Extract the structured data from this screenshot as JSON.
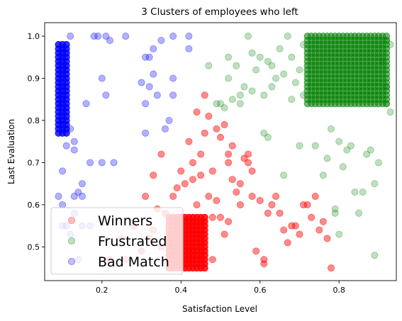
{
  "chart_data": {
    "type": "scatter",
    "title": "3 Clusters of employees who left",
    "xlabel": "Satisfaction Level",
    "ylabel": "Last Evaluation",
    "xlim": [
      0.055,
      0.945
    ],
    "ylim": [
      0.42,
      1.032
    ],
    "x_ticks": [
      0.2,
      0.4,
      0.6,
      0.8
    ],
    "x_tick_labels": [
      "0.2",
      "0.4",
      "0.6",
      "0.8"
    ],
    "y_ticks": [
      0.5,
      0.6,
      0.7,
      0.8,
      0.9,
      1.0
    ],
    "y_tick_labels": [
      "0.5",
      "0.6",
      "0.7",
      "0.8",
      "0.9",
      "1.0"
    ],
    "grid": false,
    "legend_position": "lower-left",
    "series": [
      {
        "name": "Winners",
        "color": "#ff0000",
        "dense_clusters": [
          {
            "x_range": [
              0.37,
              0.46
            ],
            "y_range": [
              0.45,
              0.57
            ],
            "x_step": 0.01,
            "y_step": 0.01,
            "alpha": 0.85
          }
        ],
        "points": [
          [
            0.38,
            0.62
          ],
          [
            0.4,
            0.68
          ],
          [
            0.42,
            0.75
          ],
          [
            0.43,
            0.66
          ],
          [
            0.45,
            0.72
          ],
          [
            0.46,
            0.86
          ],
          [
            0.47,
            0.81
          ],
          [
            0.48,
            0.68
          ],
          [
            0.49,
            0.61
          ],
          [
            0.5,
            0.76
          ],
          [
            0.51,
            0.79
          ],
          [
            0.52,
            0.7
          ],
          [
            0.53,
            0.74
          ],
          [
            0.54,
            0.63
          ],
          [
            0.55,
            0.65
          ],
          [
            0.56,
            0.71
          ],
          [
            0.57,
            0.72
          ],
          [
            0.57,
            0.7
          ],
          [
            0.58,
            0.62
          ],
          [
            0.59,
            0.49
          ],
          [
            0.61,
            0.47
          ],
          [
            0.61,
            0.46
          ],
          [
            0.64,
            0.62
          ],
          [
            0.65,
            0.58
          ],
          [
            0.67,
            0.51
          ],
          [
            0.7,
            0.53
          ],
          [
            0.72,
            0.6
          ],
          [
            0.75,
            0.54
          ],
          [
            0.78,
            0.45
          ],
          [
            0.33,
            0.67
          ],
          [
            0.34,
            0.59
          ],
          [
            0.31,
            0.62
          ],
          [
            0.36,
            0.58
          ],
          [
            0.41,
            0.65
          ],
          [
            0.44,
            0.6
          ],
          [
            0.48,
            0.57
          ],
          [
            0.5,
            0.57
          ],
          [
            0.52,
            0.56
          ],
          [
            0.55,
            0.6
          ],
          [
            0.6,
            0.61
          ],
          [
            0.66,
            0.54
          ],
          [
            0.68,
            0.55
          ],
          [
            0.73,
            0.57
          ],
          [
            0.35,
            0.72
          ],
          [
            0.39,
            0.64
          ],
          [
            0.43,
            0.7
          ],
          [
            0.46,
            0.77
          ],
          [
            0.53,
            0.66
          ],
          [
            0.58,
            0.68
          ],
          [
            0.63,
            0.6
          ],
          [
            0.69,
            0.55
          ],
          [
            0.74,
            0.62
          ],
          [
            0.28,
            0.55
          ],
          [
            0.3,
            0.49
          ],
          [
            0.32,
            0.52
          ],
          [
            0.26,
            0.47
          ],
          [
            0.33,
            0.54
          ],
          [
            0.35,
            0.5
          ],
          [
            0.22,
            0.47
          ],
          [
            0.25,
            0.52
          ],
          [
            0.48,
            0.47
          ],
          [
            0.51,
            0.53
          ],
          [
            0.62,
            0.58
          ],
          [
            0.71,
            0.6
          ],
          [
            0.76,
            0.56
          ],
          [
            0.77,
            0.52
          ],
          [
            0.47,
            0.62
          ],
          [
            0.45,
            0.67
          ],
          [
            0.52,
            0.72
          ],
          [
            0.49,
            0.78
          ],
          [
            0.44,
            0.82
          ]
        ],
        "alpha": 0.45
      },
      {
        "name": "Frustrated",
        "color": "#008000",
        "dense_clusters": [
          {
            "x_range": [
              0.72,
              0.92
            ],
            "y_range": [
              0.84,
              1.0
            ],
            "x_step": 0.01,
            "y_step": 0.01,
            "alpha": 0.55
          }
        ],
        "points": [
          [
            0.47,
            0.93
          ],
          [
            0.5,
            0.84
          ],
          [
            0.51,
            0.83
          ],
          [
            0.52,
            0.95
          ],
          [
            0.53,
            0.85
          ],
          [
            0.54,
            0.93
          ],
          [
            0.55,
            0.86
          ],
          [
            0.56,
            0.88
          ],
          [
            0.57,
            1.0
          ],
          [
            0.58,
            0.87
          ],
          [
            0.59,
            0.92
          ],
          [
            0.6,
            0.95
          ],
          [
            0.61,
            0.86
          ],
          [
            0.62,
            0.94
          ],
          [
            0.63,
            0.88
          ],
          [
            0.64,
            0.9
          ],
          [
            0.65,
            0.97
          ],
          [
            0.66,
            0.91
          ],
          [
            0.67,
            1.0
          ],
          [
            0.68,
            0.85
          ],
          [
            0.69,
            0.89
          ],
          [
            0.7,
            0.92
          ],
          [
            0.71,
            0.86
          ],
          [
            0.61,
            0.77
          ],
          [
            0.62,
            0.76
          ],
          [
            0.66,
            0.67
          ],
          [
            0.7,
            0.74
          ],
          [
            0.74,
            0.74
          ],
          [
            0.76,
            0.67
          ],
          [
            0.77,
            0.71
          ],
          [
            0.78,
            0.78
          ],
          [
            0.79,
            0.59
          ],
          [
            0.79,
            0.58
          ],
          [
            0.8,
            0.53
          ],
          [
            0.8,
            0.75
          ],
          [
            0.81,
            0.69
          ],
          [
            0.82,
            0.73
          ],
          [
            0.83,
            0.74
          ],
          [
            0.84,
            0.63
          ],
          [
            0.85,
            0.58
          ],
          [
            0.86,
            0.63
          ],
          [
            0.87,
            0.72
          ],
          [
            0.88,
            0.73
          ],
          [
            0.89,
            0.65
          ],
          [
            0.9,
            0.7
          ],
          [
            0.89,
            0.48
          ],
          [
            0.93,
            0.82
          ],
          [
            0.93,
            0.98
          ],
          [
            0.49,
            0.84
          ],
          [
            0.52,
            0.9
          ],
          [
            0.55,
            0.84
          ],
          [
            0.58,
            0.96
          ],
          [
            0.63,
            0.93
          ],
          [
            0.68,
            0.95
          ],
          [
            0.71,
            0.98
          ],
          [
            0.92,
            0.99
          ],
          [
            0.92,
            0.84
          ],
          [
            0.92,
            0.88
          ],
          [
            0.91,
            0.94
          ]
        ],
        "alpha": 0.25
      },
      {
        "name": "Bad Match",
        "color": "#0000ff",
        "dense_clusters": [
          {
            "x_range": [
              0.09,
              0.11
            ],
            "y_range": [
              0.77,
              0.98
            ],
            "x_step": 0.01,
            "y_step": 0.01,
            "alpha": 0.8
          }
        ],
        "points": [
          [
            0.09,
            0.62
          ],
          [
            0.1,
            0.68
          ],
          [
            0.11,
            0.74
          ],
          [
            0.12,
            0.78
          ],
          [
            0.13,
            0.75
          ],
          [
            0.13,
            0.73
          ],
          [
            0.13,
            0.58
          ],
          [
            0.14,
            0.63
          ],
          [
            0.15,
            0.62
          ],
          [
            0.15,
            0.65
          ],
          [
            0.15,
            0.55
          ],
          [
            0.16,
            0.84
          ],
          [
            0.17,
            0.55
          ],
          [
            0.17,
            0.7
          ],
          [
            0.2,
            0.9
          ],
          [
            0.2,
            0.7
          ],
          [
            0.21,
            0.86
          ],
          [
            0.21,
            1.0
          ],
          [
            0.22,
            0.99
          ],
          [
            0.23,
            0.7
          ],
          [
            0.26,
            1.0
          ],
          [
            0.3,
            0.89
          ],
          [
            0.31,
            0.84
          ],
          [
            0.31,
            0.77
          ],
          [
            0.31,
            0.95
          ],
          [
            0.32,
            0.88
          ],
          [
            0.32,
            0.95
          ],
          [
            0.33,
            0.91
          ],
          [
            0.33,
            0.97
          ],
          [
            0.34,
            0.86
          ],
          [
            0.35,
            0.99
          ],
          [
            0.36,
            0.78
          ],
          [
            0.37,
            0.8
          ],
          [
            0.38,
            0.9
          ],
          [
            0.38,
            0.86
          ],
          [
            0.38,
            1.0
          ],
          [
            0.42,
            1.0
          ],
          [
            0.42,
            0.97
          ],
          [
            0.12,
            1.0
          ],
          [
            0.18,
            1.0
          ],
          [
            0.19,
            1.0
          ],
          [
            0.1,
            0.55
          ],
          [
            0.12,
            0.53
          ],
          [
            0.14,
            0.47
          ],
          [
            0.13,
            0.62
          ],
          [
            0.1,
            0.6
          ],
          [
            0.11,
            0.55
          ]
        ],
        "alpha": 0.3
      }
    ]
  }
}
